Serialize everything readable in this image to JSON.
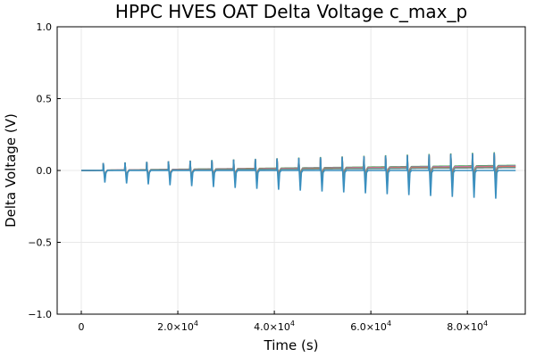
{
  "chart_data": {
    "type": "line",
    "title": "HPPC HVES OAT Delta Voltage c_max_p",
    "xlabel": "Time (s)",
    "ylabel": "Delta Voltage (V)",
    "xlim": [
      -5000,
      92000
    ],
    "ylim": [
      -1.0,
      1.0
    ],
    "grid": true,
    "legend": "none",
    "x_ticks": [
      {
        "value": 0,
        "base": "0",
        "exp": ""
      },
      {
        "value": 20000,
        "base": "2.0×10",
        "exp": "4"
      },
      {
        "value": 40000,
        "base": "4.0×10",
        "exp": "4"
      },
      {
        "value": 60000,
        "base": "6.0×10",
        "exp": "4"
      },
      {
        "value": 80000,
        "base": "8.0×10",
        "exp": "4"
      }
    ],
    "y_ticks": [
      {
        "value": -1.0,
        "label": "−1.0"
      },
      {
        "value": -0.5,
        "label": "−0.5"
      },
      {
        "value": 0.0,
        "label": "0.0"
      },
      {
        "value": 0.5,
        "label": "0.5"
      },
      {
        "value": 1.0,
        "label": "1.0"
      }
    ],
    "pulse_times": [
      4500,
      9000,
      13500,
      18000,
      22500,
      27000,
      31500,
      36000,
      40500,
      45000,
      49500,
      54000,
      58500,
      63000,
      67500,
      72000,
      76500,
      81000,
      85500
    ],
    "series": [
      {
        "color": "#3da44d",
        "x": [
          0,
          90000
        ],
        "y": [
          0.0,
          0.035
        ]
      },
      {
        "color": "#c271d2",
        "x": [
          0,
          90000
        ],
        "y": [
          0.0,
          0.03
        ]
      },
      {
        "color": "#e26f46",
        "x": [
          0,
          90000
        ],
        "y": [
          0.0,
          0.025
        ]
      },
      {
        "color": "#6e8f8a",
        "x": [
          0,
          90000
        ],
        "y": [
          0.0,
          0.02
        ]
      },
      {
        "color": "#3a8fbf",
        "x": [
          0,
          90000
        ],
        "y": [
          0.0,
          0.0
        ]
      }
    ]
  }
}
